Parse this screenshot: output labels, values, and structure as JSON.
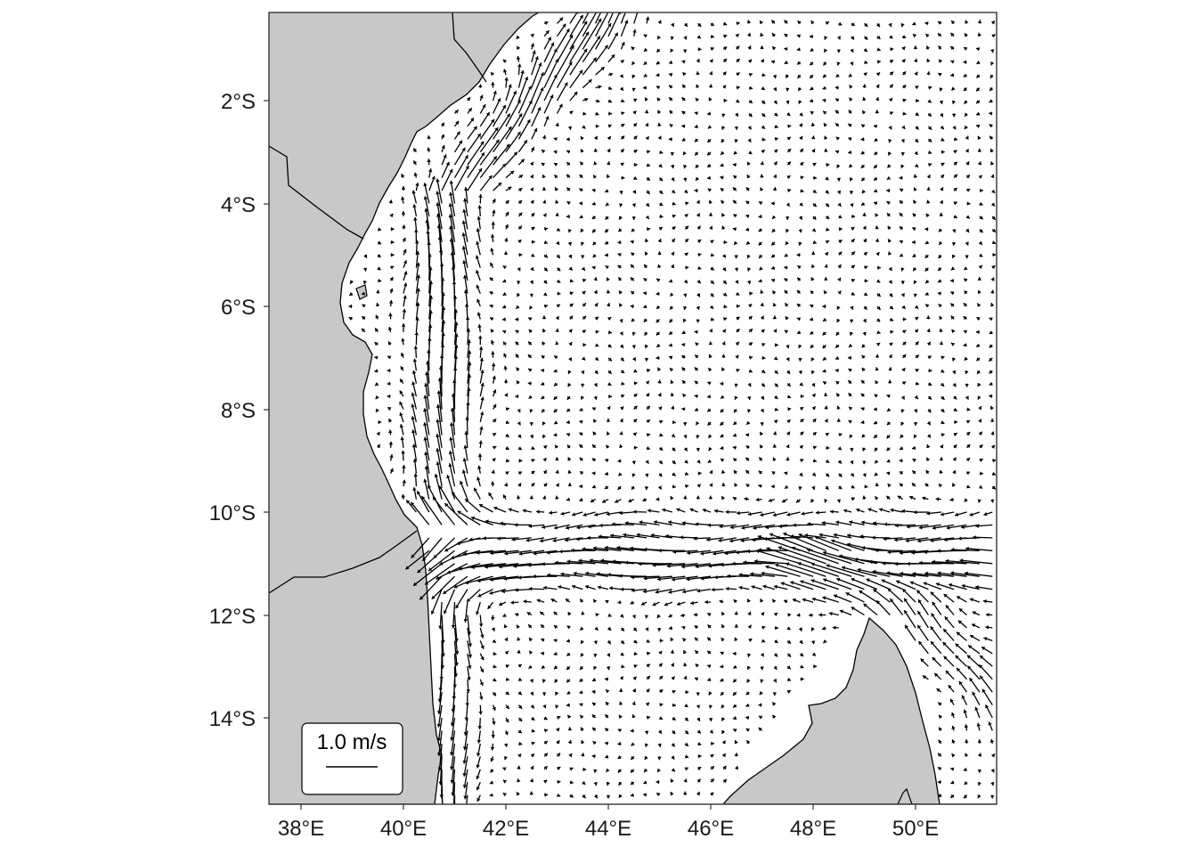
{
  "map": {
    "type": "ocean-current-vector-field",
    "region": {
      "lon_range": [
        37.45,
        51.65
      ],
      "lat_range": [
        -15.65,
        -0.35
      ]
    },
    "land_color": "#c8c8c8",
    "ocean_color": "#ffffff",
    "arrow_color": "#000000",
    "grid": false
  },
  "axes": {
    "x_ticks": [
      {
        "value": 38,
        "label": "38°E"
      },
      {
        "value": 40,
        "label": "40°E"
      },
      {
        "value": 42,
        "label": "42°E"
      },
      {
        "value": 44,
        "label": "44°E"
      },
      {
        "value": 46,
        "label": "46°E"
      },
      {
        "value": 48,
        "label": "48°E"
      },
      {
        "value": 50,
        "label": "50°E"
      }
    ],
    "y_ticks": [
      {
        "value": -2,
        "label": "2°S"
      },
      {
        "value": -4,
        "label": "4°S"
      },
      {
        "value": -6,
        "label": "6°S"
      },
      {
        "value": -8,
        "label": "8°S"
      },
      {
        "value": -10,
        "label": "10°S"
      },
      {
        "value": -12,
        "label": "12°S"
      },
      {
        "value": -14,
        "label": "14°S"
      }
    ]
  },
  "legend": {
    "label": "1.0 m/s",
    "speed": 1.0,
    "placement": "bottom-left"
  }
}
